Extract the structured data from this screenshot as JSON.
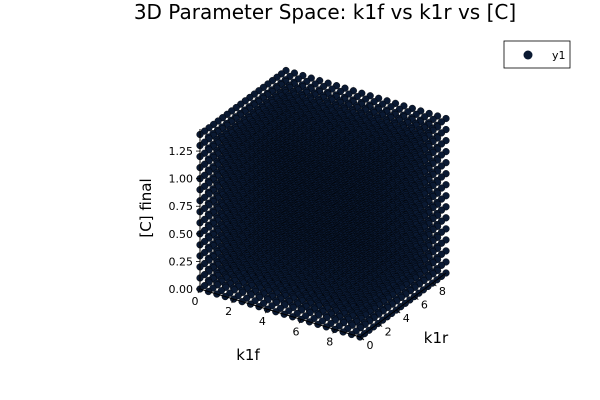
{
  "chart_data": {
    "type": "scatter",
    "projection": "3d",
    "title": "3D Parameter Space: k1f vs k1r vs [C]",
    "xlabel": "k1f",
    "ylabel": "k1r",
    "zlabel": "[C] final",
    "xticks": [
      "0",
      "2",
      "4",
      "6",
      "8"
    ],
    "yticks": [
      "0",
      "2",
      "4",
      "6",
      "8"
    ],
    "zticks": [
      "0.00",
      "0.25",
      "0.50",
      "0.75",
      "1.00",
      "1.25"
    ],
    "xlim": [
      0,
      9.5
    ],
    "ylim": [
      0,
      9.5
    ],
    "zlim": [
      0,
      1.45
    ],
    "grid": true,
    "legend_position": "top-right",
    "series": [
      {
        "name": "y1",
        "color": "#0a1932",
        "marker": "circle",
        "description": "dense grid of points over k1f and k1r from 0 to 9.5, with [C] final values spanning 0 to about 1.4"
      }
    ],
    "grid_sampling": {
      "k1f_values": [
        0,
        0.5,
        1,
        1.5,
        2,
        2.5,
        3,
        3.5,
        4,
        4.5,
        5,
        5.5,
        6,
        6.5,
        7,
        7.5,
        8,
        8.5,
        9,
        9.5
      ],
      "k1r_values": [
        0,
        0.5,
        1,
        1.5,
        2,
        2.5,
        3,
        3.5,
        4,
        4.5,
        5,
        5.5,
        6,
        6.5,
        7,
        7.5,
        8,
        8.5,
        9,
        9.5
      ],
      "c_values": [
        0,
        0.1,
        0.2,
        0.3,
        0.4,
        0.5,
        0.6,
        0.7,
        0.8,
        0.9,
        1.0,
        1.1,
        1.2,
        1.3,
        1.4
      ]
    }
  }
}
